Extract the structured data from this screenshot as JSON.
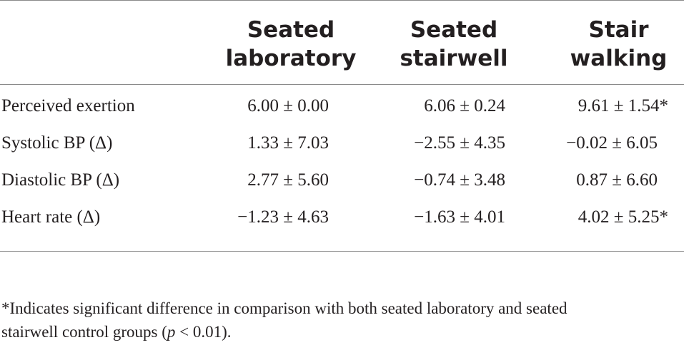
{
  "table": {
    "columns": [
      {
        "line1": "Seated",
        "line2": "laboratory"
      },
      {
        "line1": "Seated",
        "line2": "stairwell"
      },
      {
        "line1": "Stair",
        "line2": "walking"
      }
    ],
    "rows": [
      {
        "label": "Perceived exertion",
        "values": [
          "6.00 ± 0.00",
          "6.06 ± 0.24",
          "9.61 ± 1.54*"
        ]
      },
      {
        "label": "Systolic BP (Δ)",
        "values": [
          "1.33 ± 7.03",
          "−2.55 ± 4.35",
          "−0.02 ± 6.05"
        ]
      },
      {
        "label": "Diastolic BP (Δ)",
        "values": [
          "2.77 ± 5.60",
          "−0.74 ± 3.48",
          "0.87 ± 6.60"
        ]
      },
      {
        "label": "Heart rate (Δ)",
        "values": [
          "−1.23 ± 4.63",
          "−1.63 ± 4.01",
          "4.02 ± 5.25*"
        ]
      }
    ]
  },
  "footnote": {
    "line1": "*Indicates significant difference in comparison with both seated laboratory and seated",
    "line2_prefix": "stairwell control groups (",
    "p_symbol": "p",
    "line2_suffix": " < 0.01)."
  }
}
